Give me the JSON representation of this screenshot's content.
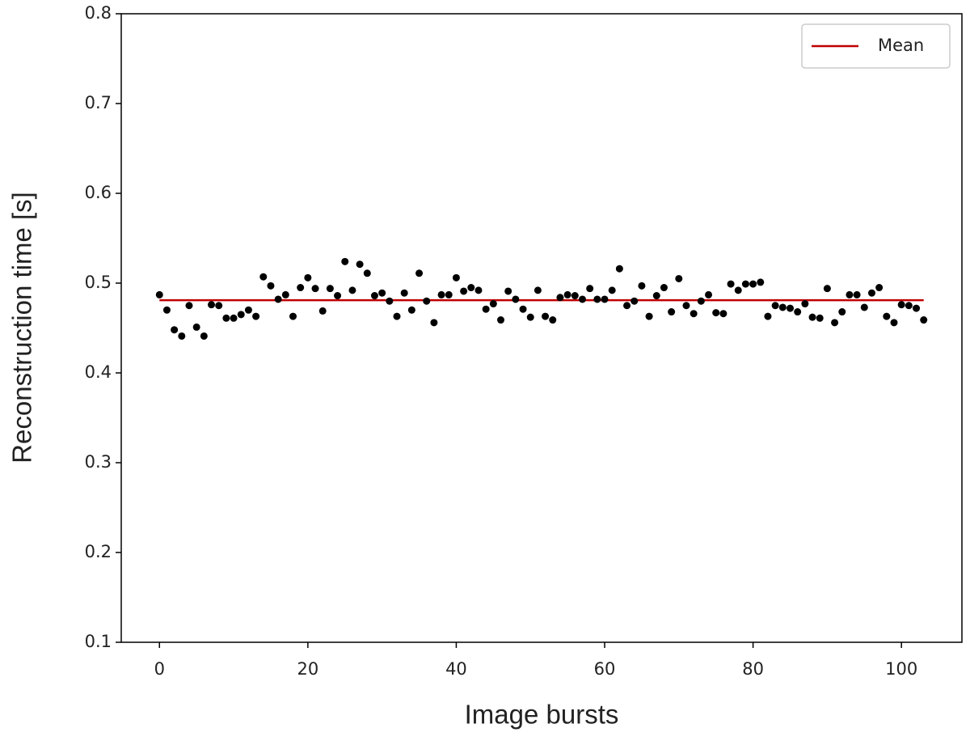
{
  "chart_data": {
    "type": "scatter",
    "x_label": "Image bursts",
    "y_label": "Reconstruction time [s]",
    "x": [
      0,
      1,
      2,
      3,
      4,
      5,
      6,
      7,
      8,
      9,
      10,
      11,
      12,
      13,
      14,
      15,
      16,
      17,
      18,
      19,
      20,
      21,
      22,
      23,
      24,
      25,
      26,
      27,
      28,
      29,
      30,
      31,
      32,
      33,
      34,
      35,
      36,
      37,
      38,
      39,
      40,
      41,
      42,
      43,
      44,
      45,
      46,
      47,
      48,
      49,
      50,
      51,
      52,
      53,
      54,
      55,
      56,
      57,
      58,
      59,
      60,
      61,
      62,
      63,
      64,
      65,
      66,
      67,
      68,
      69,
      70,
      71,
      72,
      73,
      74,
      75,
      76,
      77,
      78,
      79,
      80,
      81,
      82,
      83,
      84,
      85,
      86,
      87,
      88,
      89,
      90,
      91,
      92,
      93,
      94,
      95,
      96,
      97,
      98,
      99,
      100,
      101,
      102,
      103
    ],
    "values": [
      0.487,
      0.47,
      0.448,
      0.441,
      0.475,
      0.451,
      0.441,
      0.476,
      0.475,
      0.461,
      0.461,
      0.465,
      0.47,
      0.463,
      0.507,
      0.497,
      0.482,
      0.487,
      0.463,
      0.495,
      0.506,
      0.494,
      0.469,
      0.494,
      0.486,
      0.524,
      0.492,
      0.521,
      0.511,
      0.486,
      0.489,
      0.48,
      0.463,
      0.489,
      0.47,
      0.511,
      0.48,
      0.456,
      0.487,
      0.487,
      0.506,
      0.491,
      0.495,
      0.492,
      0.471,
      0.477,
      0.459,
      0.491,
      0.482,
      0.471,
      0.462,
      0.492,
      0.463,
      0.459,
      0.484,
      0.487,
      0.486,
      0.482,
      0.494,
      0.482,
      0.482,
      0.492,
      0.516,
      0.475,
      0.48,
      0.497,
      0.463,
      0.486,
      0.495,
      0.468,
      0.505,
      0.475,
      0.466,
      0.48,
      0.487,
      0.467,
      0.466,
      0.499,
      0.492,
      0.499,
      0.499,
      0.501,
      0.463,
      0.475,
      0.473,
      0.472,
      0.468,
      0.477,
      0.462,
      0.461,
      0.494,
      0.456,
      0.468,
      0.487,
      0.487,
      0.473,
      0.489,
      0.495,
      0.463,
      0.456,
      0.476,
      0.475,
      0.472,
      0.459
    ],
    "color": "#000000",
    "mean": {
      "name": "Mean",
      "color": "#c00000",
      "x": [
        0,
        103
      ],
      "values": [
        0.481,
        0.481
      ]
    },
    "xlim": [
      -5.15,
      108.15
    ],
    "xticks": [
      0,
      20,
      40,
      60,
      80,
      100
    ],
    "ylim": [
      0.1,
      0.8
    ],
    "yticks": [
      0.1,
      0.2,
      0.3,
      0.4,
      0.5,
      0.6,
      0.7,
      0.8
    ],
    "legend": "upper right"
  }
}
